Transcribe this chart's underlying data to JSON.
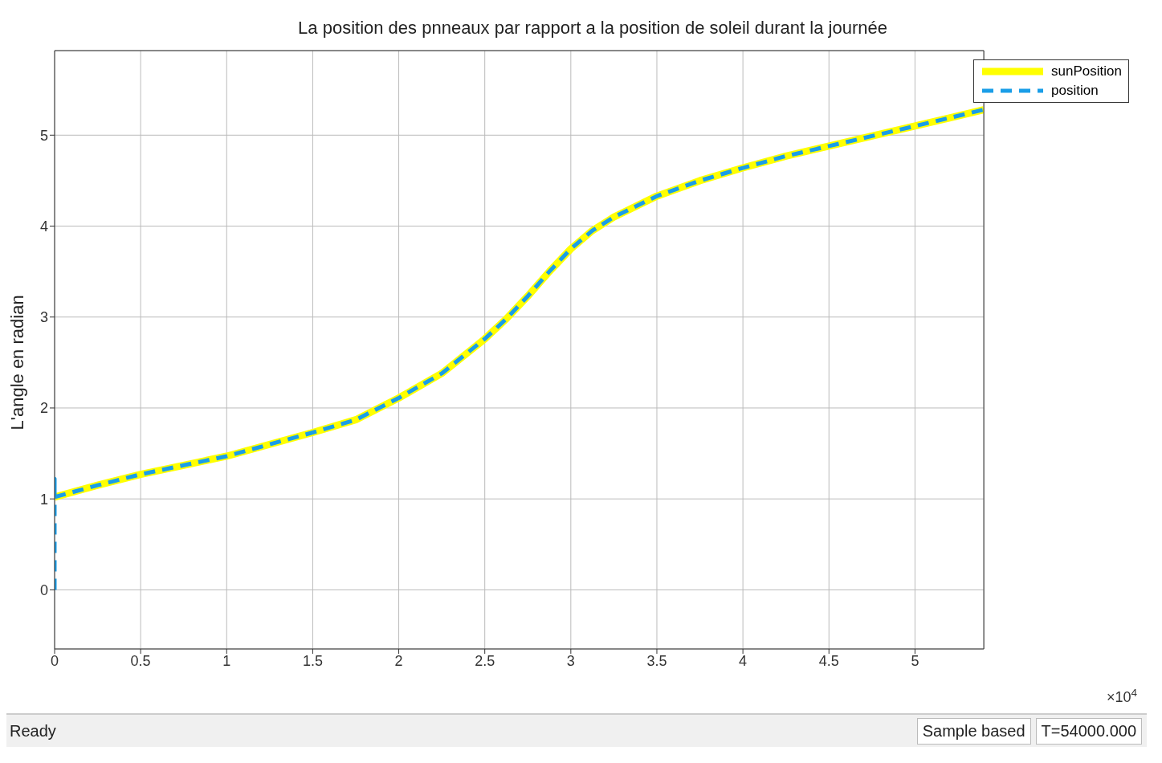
{
  "chart_data": {
    "type": "line",
    "title": "La position des pnneaux par rapport a la position de soleil durant la journée",
    "ylabel": "L'angle en radian",
    "xlim": [
      0,
      5.4
    ],
    "xticks": [
      0,
      0.5,
      1,
      1.5,
      2,
      2.5,
      3,
      3.5,
      4,
      4.5,
      5
    ],
    "ylim": [
      -0.65,
      5.93
    ],
    "yticks": [
      0,
      1,
      2,
      3,
      4,
      5
    ],
    "grid": true,
    "legend": "top right",
    "series": [
      {
        "name": "sunPosition",
        "color": "#ffff00",
        "line_style": "solid",
        "x": [
          0,
          0.25,
          0.5,
          0.75,
          1,
          1.25,
          1.5,
          1.75,
          2,
          2.25,
          2.5,
          2.625,
          2.75,
          2.875,
          3,
          3.125,
          3.25,
          3.5,
          3.75,
          4,
          4.25,
          4.5,
          4.75,
          5,
          5.2,
          5.4
        ],
        "values": [
          1.02,
          1.15,
          1.27,
          1.37,
          1.47,
          1.6,
          1.73,
          1.87,
          2.11,
          2.38,
          2.76,
          2.98,
          3.23,
          3.5,
          3.75,
          3.95,
          4.1,
          4.33,
          4.5,
          4.64,
          4.77,
          4.88,
          4.99,
          5.1,
          5.19,
          5.28
        ]
      },
      {
        "name": "position",
        "color": "#1a9ee8",
        "line_style": "dashed",
        "x": [
          0,
          0,
          0,
          0.25,
          0.5,
          0.75,
          1,
          1.25,
          1.5,
          1.75,
          2,
          2.25,
          2.5,
          2.625,
          2.75,
          2.875,
          3,
          3.125,
          3.25,
          3.5,
          3.75,
          4,
          4.25,
          4.5,
          4.75,
          5,
          5.2,
          5.4
        ],
        "values": [
          0,
          1.22,
          1.02,
          1.15,
          1.27,
          1.37,
          1.47,
          1.6,
          1.73,
          1.87,
          2.11,
          2.38,
          2.76,
          2.98,
          3.23,
          3.5,
          3.75,
          3.95,
          4.1,
          4.33,
          4.5,
          4.64,
          4.77,
          4.88,
          4.99,
          5.1,
          5.19,
          5.28
        ]
      }
    ],
    "annotations": [
      "×10$^{4}$",
      "Ready",
      "Sample based",
      "T=54000.000"
    ]
  }
}
